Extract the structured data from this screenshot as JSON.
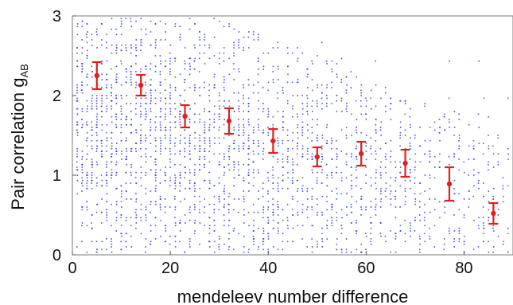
{
  "chart_data": {
    "type": "scatter",
    "title": "",
    "xlabel": "mendeleev number difference",
    "ylabel": {
      "main": "Pair correlation g",
      "subscript": "AB"
    },
    "xlim": [
      0,
      90
    ],
    "ylim": [
      0,
      3
    ],
    "xticks": [
      "0",
      "20",
      "40",
      "60",
      "80"
    ],
    "yticks": [
      "0",
      "1",
      "2",
      "3"
    ],
    "grid": false,
    "legend": "none",
    "scatter_color": "#3b4bd6",
    "scatter_description": "dense cloud of small blue points, many stacked in vertical columns at integer x values 1–90; density highest for x below 40 and thins toward high x and high y",
    "series": [
      {
        "x": [
          5,
          14,
          23,
          32,
          41,
          50,
          59,
          68,
          77,
          86
        ],
        "y": [
          2.25,
          2.13,
          1.74,
          1.68,
          1.43,
          1.23,
          1.27,
          1.15,
          0.89,
          0.52
        ],
        "err": [
          0.17,
          0.13,
          0.14,
          0.16,
          0.15,
          0.12,
          0.15,
          0.17,
          0.21,
          0.13
        ],
        "color": "#e02020"
      }
    ]
  }
}
